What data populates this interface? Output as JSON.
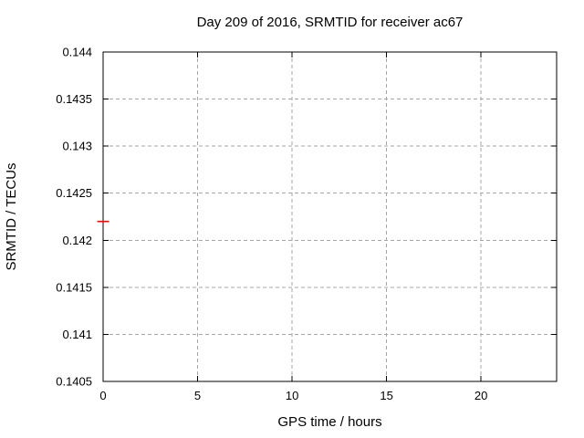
{
  "chart_data": {
    "type": "scatter",
    "title": "Day 209 of 2016, SRMTID for receiver ac67",
    "xlabel": "GPS time / hours",
    "ylabel": "SRMTID / TECUs",
    "xlim": [
      0,
      24
    ],
    "ylim": [
      0.1405,
      0.144
    ],
    "x_ticks": [
      0,
      5,
      10,
      15,
      20
    ],
    "x_tick_labels": [
      "0",
      "5",
      "10",
      "15",
      "20"
    ],
    "y_ticks": [
      0.1405,
      0.141,
      0.1415,
      0.142,
      0.1425,
      0.143,
      0.1435,
      0.144
    ],
    "y_tick_labels": [
      "0.1405",
      "0.141",
      "0.1415",
      "0.142",
      "0.1425",
      "0.143",
      "0.1435",
      "0.144"
    ],
    "grid": true,
    "legend": "none",
    "series": [
      {
        "marker": "horizontal-dash",
        "color": "#ff0000",
        "points": [
          {
            "x": 0,
            "y": 0.1422
          }
        ]
      }
    ],
    "colors": {
      "background": "#ffffff",
      "border": "#000000",
      "grid": "#a6a6a6",
      "text": "#000000"
    }
  }
}
